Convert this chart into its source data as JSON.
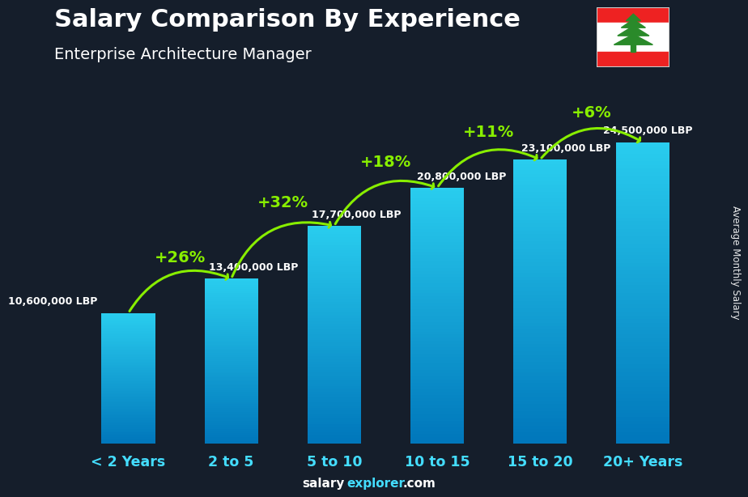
{
  "title": "Salary Comparison By Experience",
  "subtitle": "Enterprise Architecture Manager",
  "categories": [
    "< 2 Years",
    "2 to 5",
    "5 to 10",
    "10 to 15",
    "15 to 20",
    "20+ Years"
  ],
  "values": [
    10600000,
    13400000,
    17700000,
    20800000,
    23100000,
    24500000
  ],
  "labels": [
    "10,600,000 LBP",
    "13,400,000 LBP",
    "17,700,000 LBP",
    "20,800,000 LBP",
    "23,100,000 LBP",
    "24,500,000 LBP"
  ],
  "pct_labels": [
    "+26%",
    "+32%",
    "+18%",
    "+11%",
    "+6%"
  ],
  "bar_color_top": "#29ccee",
  "bar_color_bottom": "#0077bb",
  "background_top": "#1a1a2e",
  "background_bottom": "#2a3a4a",
  "title_color": "#ffffff",
  "subtitle_color": "#ffffff",
  "label_color": "#ffffff",
  "pct_color": "#88ee00",
  "xlabel_color": "#44ddff",
  "ylabel": "Average Monthly Salary",
  "footer_salary_color": "#ffffff",
  "footer_explorer_color": "#44ddff",
  "footer_com_color": "#ffffff",
  "ylim": [
    0,
    30000000
  ],
  "bar_width": 0.52
}
